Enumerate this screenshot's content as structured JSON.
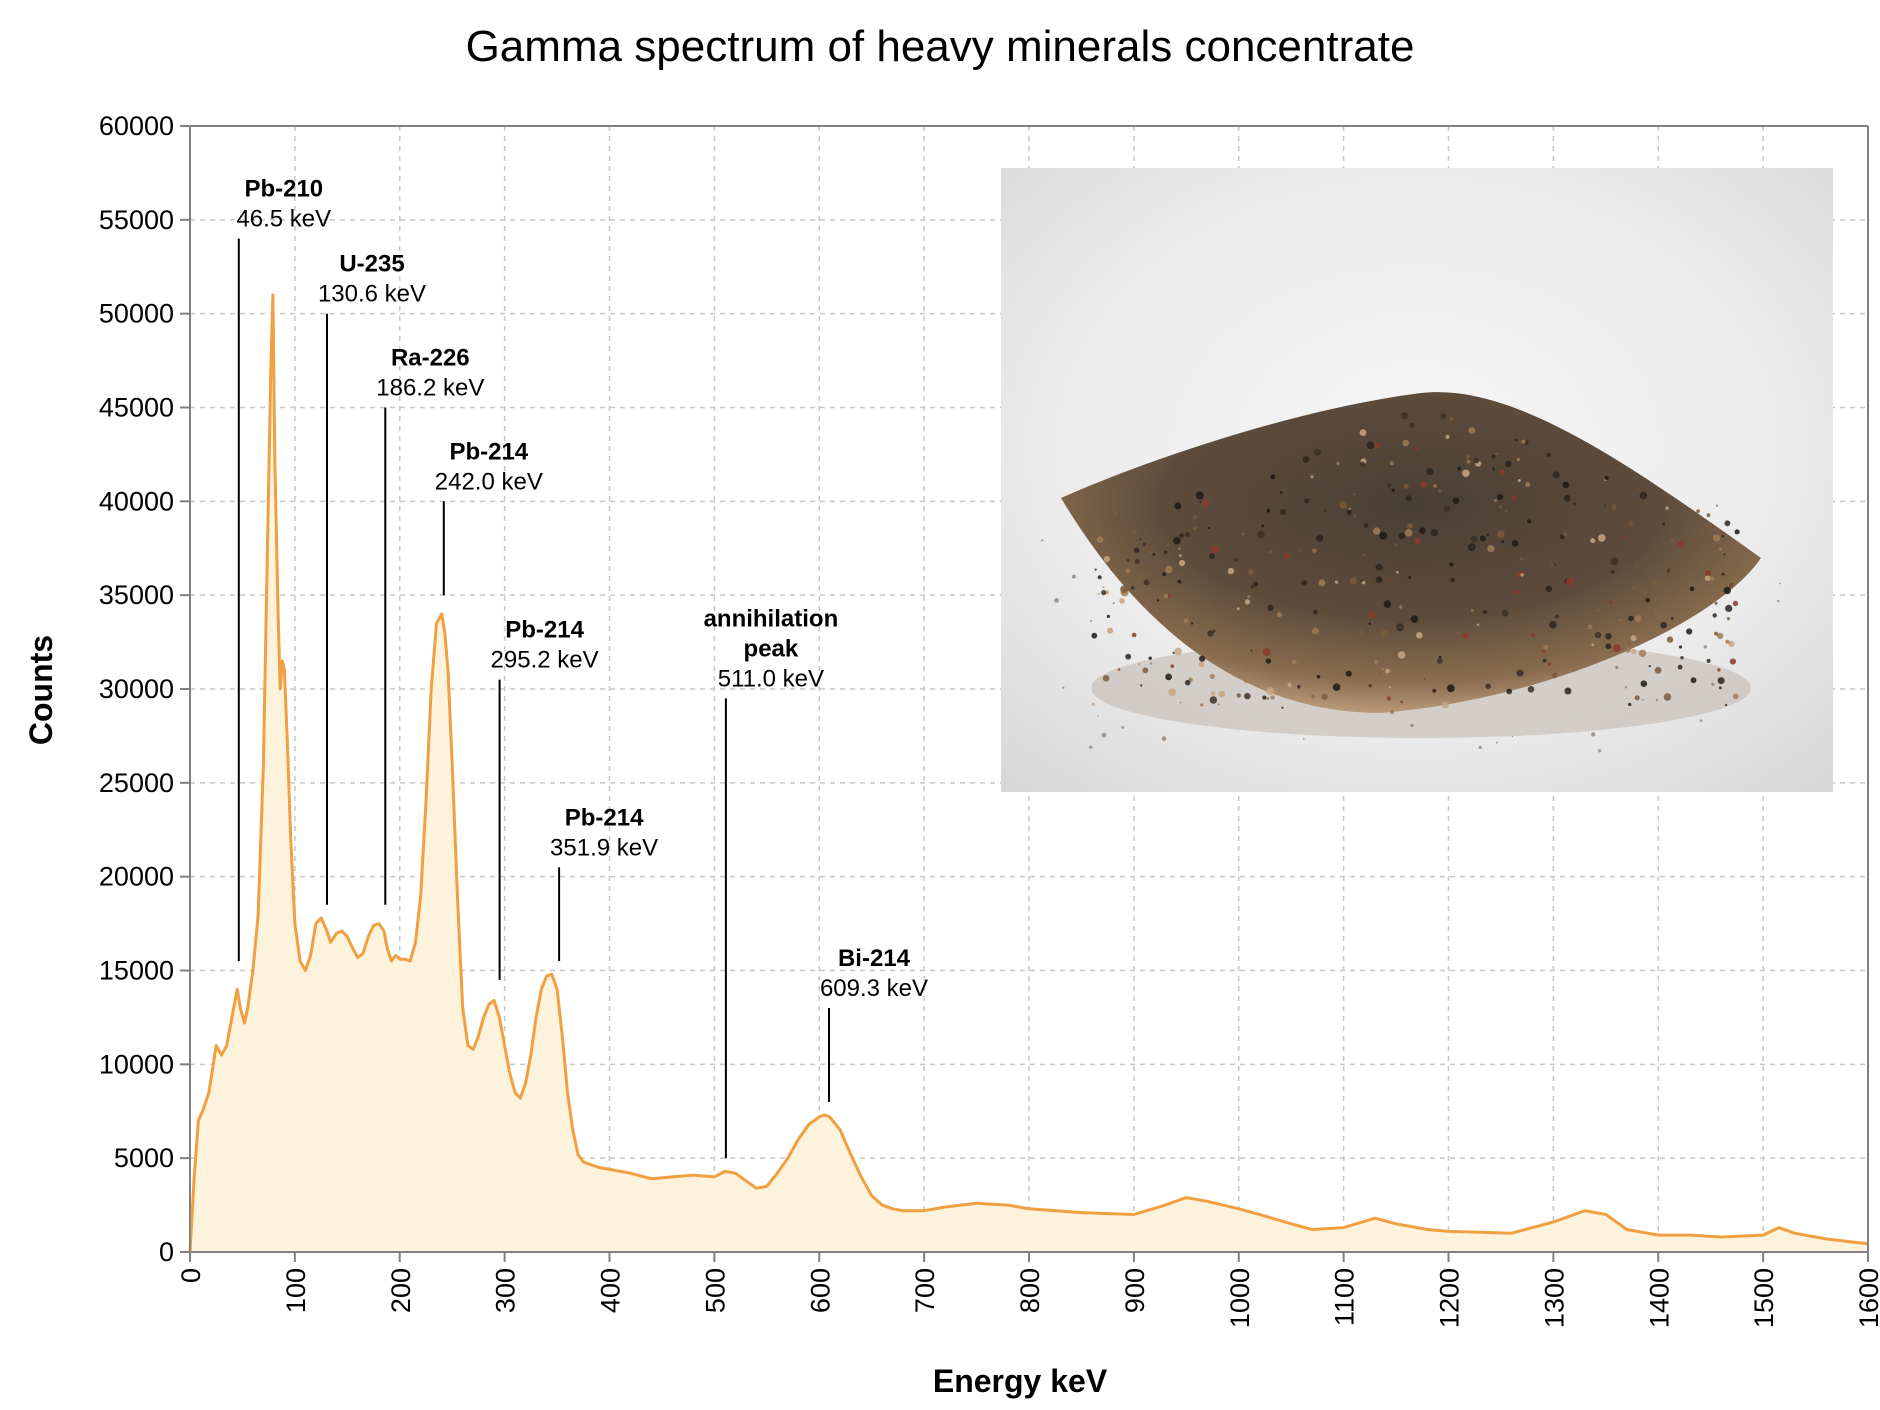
{
  "chart_data": {
    "type": "area",
    "title": "Gamma spectrum of heavy minerals concentrate",
    "xlabel": "Energy keV",
    "ylabel": "Counts",
    "xlim": [
      0,
      1600
    ],
    "ylim": [
      0,
      60000
    ],
    "x_ticks": [
      0,
      100,
      200,
      300,
      400,
      500,
      600,
      700,
      800,
      900,
      1000,
      1100,
      1200,
      1300,
      1400,
      1500,
      1600
    ],
    "y_ticks": [
      0,
      5000,
      10000,
      15000,
      20000,
      25000,
      30000,
      35000,
      40000,
      45000,
      50000,
      55000,
      60000
    ],
    "grid": true,
    "colors": {
      "line": "#f0a040",
      "fill": "#fdf3dc",
      "grid": "#c8c8c8"
    },
    "series": [
      {
        "x": [
          0,
          4,
          8,
          12,
          18,
          25,
          30,
          35,
          40,
          45,
          48,
          52,
          55,
          60,
          65,
          70,
          74,
          77,
          79,
          81,
          84,
          86,
          88,
          90,
          93,
          96,
          100,
          105,
          110,
          115,
          120,
          125,
          130,
          134,
          140,
          145,
          150,
          155,
          160,
          165,
          170,
          175,
          180,
          185,
          188,
          192,
          196,
          200,
          205,
          210,
          215,
          220,
          225,
          230,
          235,
          240,
          243,
          246,
          250,
          255,
          260,
          265,
          270,
          275,
          280,
          285,
          290,
          295,
          300,
          305,
          310,
          315,
          320,
          325,
          330,
          335,
          340,
          345,
          350,
          355,
          360,
          365,
          370,
          375,
          380,
          385,
          390,
          400,
          420,
          440,
          460,
          480,
          500,
          510,
          520,
          530,
          540,
          550,
          560,
          570,
          580,
          590,
          600,
          605,
          610,
          620,
          630,
          640,
          650,
          660,
          670,
          680,
          700,
          720,
          750,
          780,
          800,
          850,
          900,
          930,
          950,
          970,
          1000,
          1020,
          1050,
          1070,
          1100,
          1130,
          1150,
          1180,
          1200,
          1230,
          1260,
          1300,
          1330,
          1350,
          1370,
          1400,
          1430,
          1460,
          1500,
          1515,
          1530,
          1560,
          1590,
          1600
        ],
        "y": [
          0,
          4000,
          7000,
          7500,
          8500,
          11000,
          10500,
          11000,
          12500,
          14000,
          13000,
          12200,
          13000,
          15000,
          18000,
          26000,
          38000,
          47000,
          51000,
          42000,
          34000,
          30000,
          31500,
          31000,
          27000,
          22000,
          17500,
          15500,
          15000,
          15800,
          17500,
          17800,
          17200,
          16500,
          17000,
          17100,
          16800,
          16200,
          15700,
          15900,
          16800,
          17400,
          17500,
          17100,
          16200,
          15500,
          15800,
          15600,
          15600,
          15500,
          16500,
          19000,
          24000,
          30000,
          33500,
          34000,
          33000,
          31000,
          26000,
          19000,
          13000,
          11000,
          10800,
          11500,
          12500,
          13200,
          13400,
          12500,
          11000,
          9500,
          8500,
          8200,
          9000,
          10500,
          12500,
          14000,
          14700,
          14800,
          14000,
          11500,
          8500,
          6500,
          5200,
          4800,
          4700,
          4600,
          4500,
          4400,
          4200,
          3900,
          4000,
          4100,
          4000,
          4300,
          4200,
          3800,
          3400,
          3500,
          4200,
          5000,
          6000,
          6800,
          7200,
          7300,
          7200,
          6500,
          5200,
          4000,
          3000,
          2500,
          2300,
          2200,
          2200,
          2400,
          2600,
          2500,
          2300,
          2100,
          2000,
          2500,
          2900,
          2700,
          2300,
          2000,
          1500,
          1200,
          1300,
          1800,
          1500,
          1200,
          1100,
          1050,
          1000,
          1600,
          2200,
          2000,
          1200,
          900,
          900,
          800,
          900,
          1300,
          1000,
          700,
          500,
          450
        ]
      }
    ],
    "annotations": [
      {
        "name": "Pb-210",
        "energy_label": "46.5 keV",
        "energy": 46.5,
        "line_top": 54000,
        "line_bottom": 15500
      },
      {
        "name": "U-235",
        "energy_label": "130.6 keV",
        "energy": 130.6,
        "line_top": 50000,
        "line_bottom": 18500
      },
      {
        "name": "Ra-226",
        "energy_label": "186.2 keV",
        "energy": 186.2,
        "line_top": 45000,
        "line_bottom": 18500
      },
      {
        "name": "Pb-214",
        "energy_label": "242.0 keV",
        "energy": 242.0,
        "line_top": 40000,
        "line_bottom": 35000
      },
      {
        "name": "Pb-214",
        "energy_label": "295.2 keV",
        "energy": 295.2,
        "line_top": 30500,
        "line_bottom": 14500
      },
      {
        "name": "annihilation",
        "name2": "peak",
        "energy_label": "511.0 keV",
        "energy": 511.0,
        "line_top": 29500,
        "line_bottom": 5000
      },
      {
        "name": "Pb-214",
        "energy_label": "351.9 keV",
        "energy": 351.9,
        "line_top": 20500,
        "line_bottom": 15500
      },
      {
        "name": "Bi-214",
        "energy_label": "609.3 keV",
        "energy": 609.3,
        "line_top": 13000,
        "line_bottom": 8000
      }
    ]
  },
  "inset_photo": {
    "label": ""
  }
}
